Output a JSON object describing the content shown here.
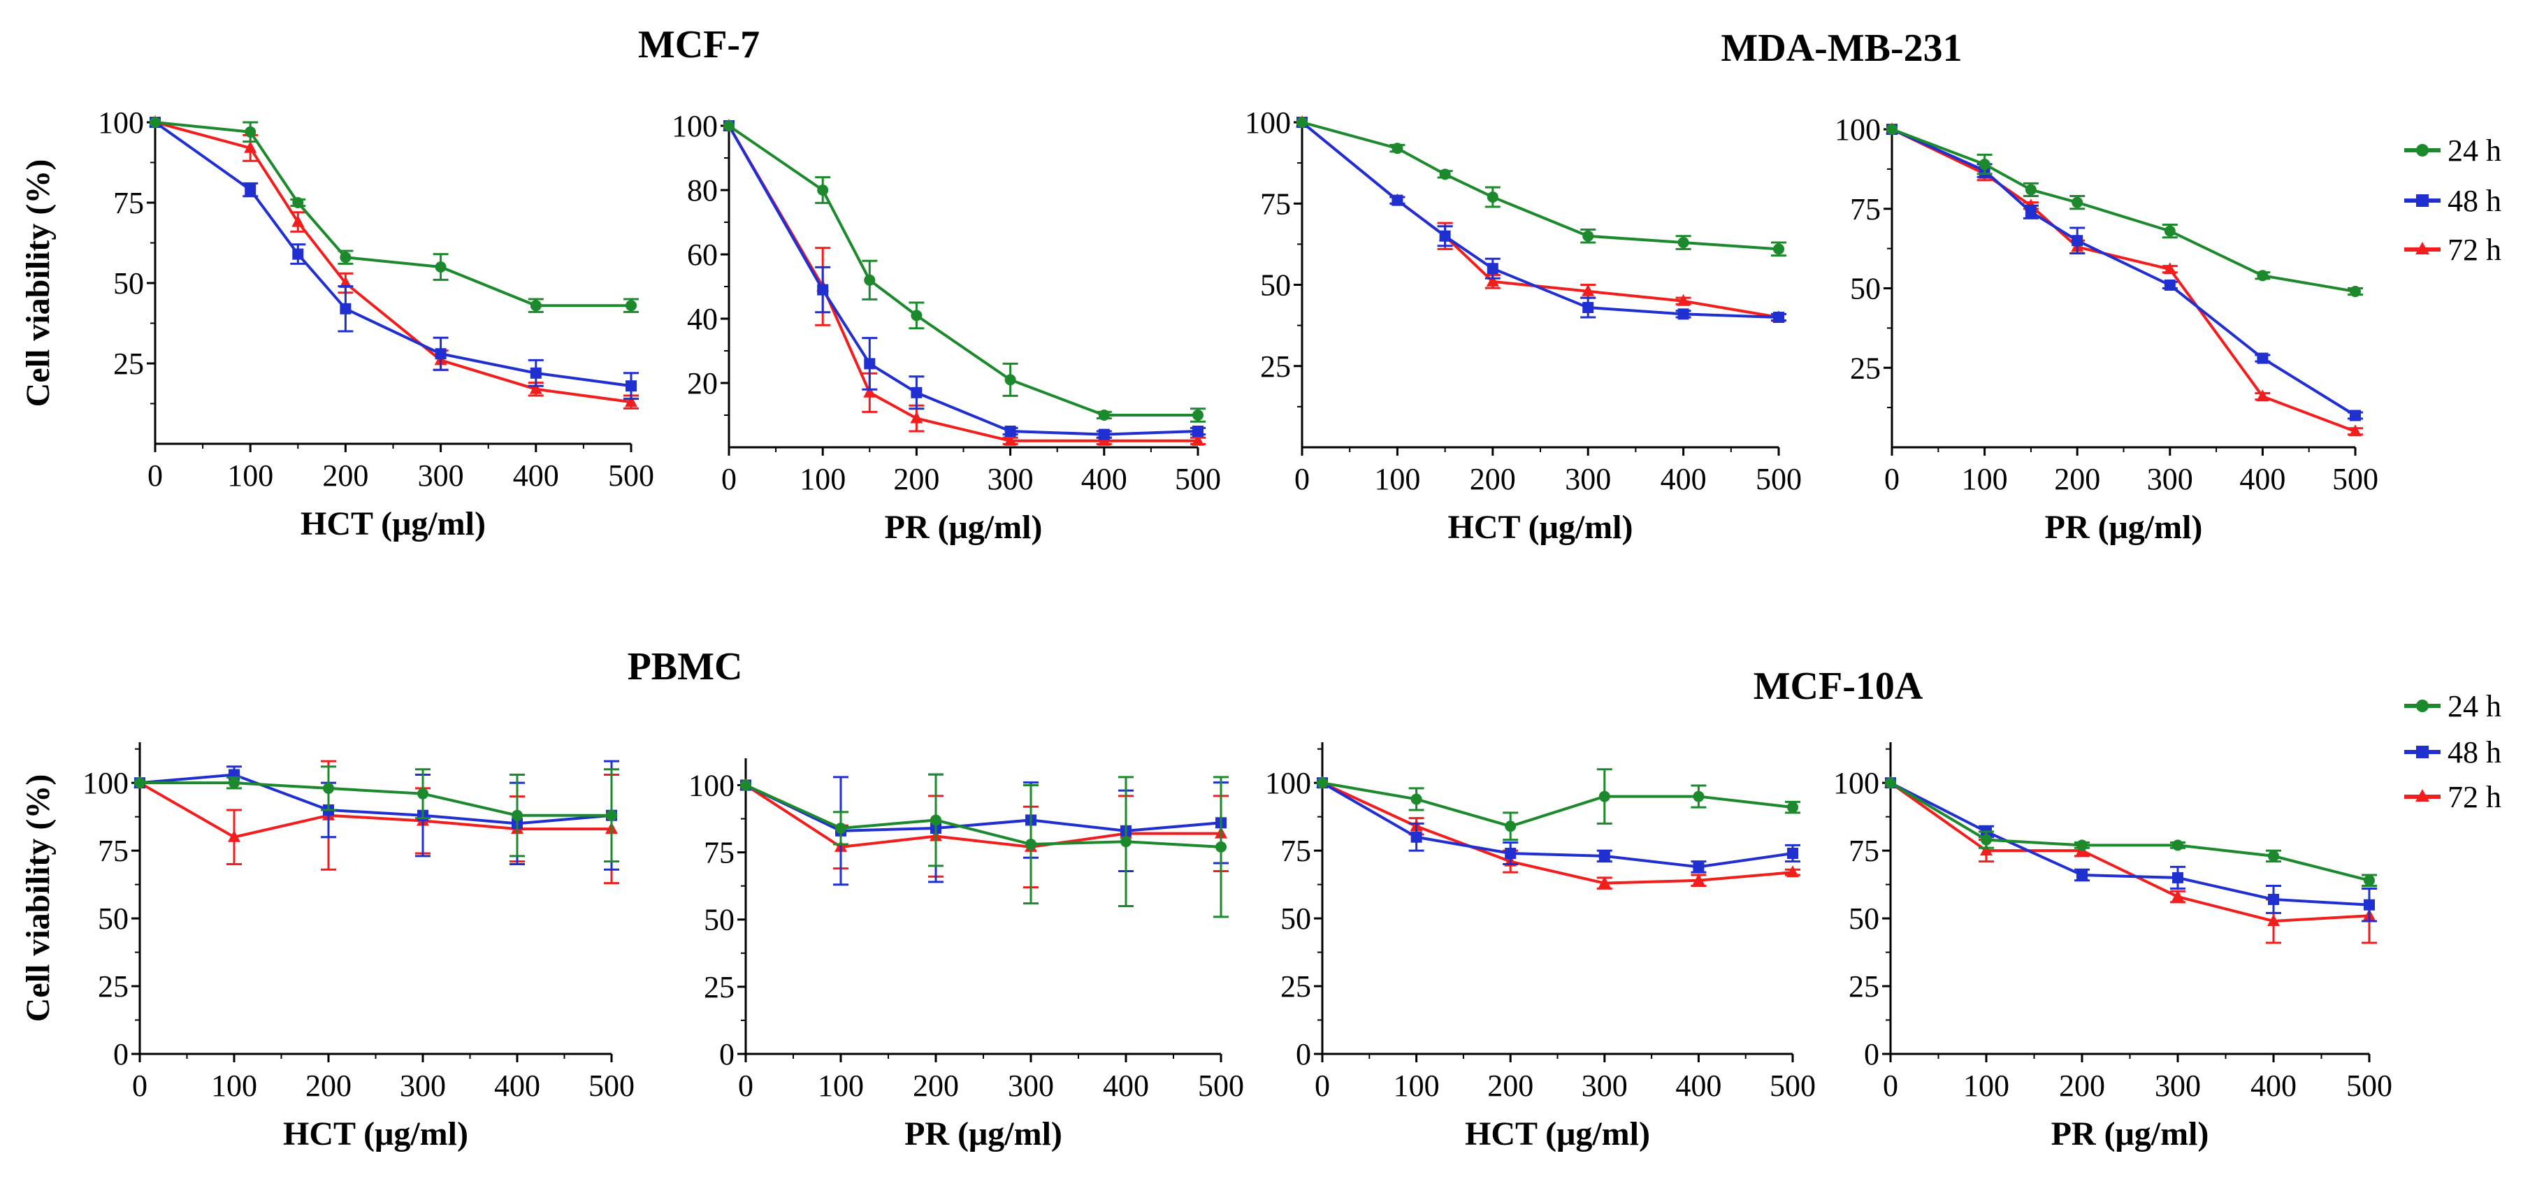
{
  "figure": {
    "group_titles": [
      "MCF-7",
      "MDA-MB-231",
      "PBMC",
      "MCF-10A"
    ],
    "legend_labels": [
      "24 h",
      "48 h",
      "72 h"
    ],
    "series_colors": [
      "#1c8a2c",
      "#1f2fd0",
      "#f21d1d"
    ]
  },
  "chart_data": [
    {
      "type": "line",
      "panel": "MCF-7 HCT",
      "xlabel": "HCT (μg/ml)",
      "ylabel": "Cell viability (%)",
      "x": [
        0,
        100,
        150,
        200,
        300,
        400,
        500
      ],
      "xticks": [
        0,
        100,
        200,
        300,
        400,
        500
      ],
      "ylim": [
        0,
        100
      ],
      "yticks": [
        25,
        50,
        75,
        100
      ],
      "series": [
        {
          "name": "24 h",
          "values": [
            100,
            97,
            75,
            58,
            55,
            43,
            43
          ],
          "errors": [
            0,
            3,
            1,
            2,
            4,
            2,
            2
          ]
        },
        {
          "name": "48 h",
          "values": [
            100,
            79,
            59,
            42,
            28,
            22,
            18
          ],
          "errors": [
            0,
            2,
            3,
            7,
            5,
            4,
            4
          ]
        },
        {
          "name": "72 h",
          "values": [
            100,
            92,
            69,
            50,
            26,
            17,
            13
          ],
          "errors": [
            0,
            4,
            3,
            3,
            3,
            2,
            2
          ]
        }
      ]
    },
    {
      "type": "line",
      "panel": "MCF-7 PR",
      "xlabel": "PR (μg/ml)",
      "ylabel": "",
      "x": [
        0,
        100,
        150,
        200,
        300,
        400,
        500
      ],
      "xticks": [
        0,
        100,
        200,
        300,
        400,
        500
      ],
      "ylim": [
        0,
        100
      ],
      "yticks": [
        20,
        40,
        60,
        80,
        100
      ],
      "series": [
        {
          "name": "24 h",
          "values": [
            100,
            80,
            52,
            41,
            21,
            10,
            10
          ],
          "errors": [
            0,
            4,
            6,
            4,
            5,
            1,
            2
          ]
        },
        {
          "name": "48 h",
          "values": [
            100,
            49,
            26,
            17,
            5,
            4,
            5
          ],
          "errors": [
            0,
            7,
            8,
            5,
            1,
            1,
            1
          ]
        },
        {
          "name": "72 h",
          "values": [
            100,
            50,
            17,
            9,
            2,
            2,
            2
          ],
          "errors": [
            0,
            12,
            6,
            4,
            1,
            1,
            1
          ]
        }
      ]
    },
    {
      "type": "line",
      "panel": "MDA-MB-231 HCT",
      "xlabel": "HCT (μg/ml)",
      "ylabel": "",
      "x": [
        0,
        100,
        150,
        200,
        300,
        400,
        500
      ],
      "xticks": [
        0,
        100,
        200,
        300,
        400,
        500
      ],
      "ylim": [
        0,
        100
      ],
      "yticks": [
        25,
        50,
        75,
        100
      ],
      "series": [
        {
          "name": "24 h",
          "values": [
            100,
            92,
            84,
            77,
            65,
            63,
            61
          ],
          "errors": [
            0,
            1,
            1,
            3,
            2,
            2,
            2
          ]
        },
        {
          "name": "48 h",
          "values": [
            100,
            76,
            65,
            55,
            43,
            41,
            40
          ],
          "errors": [
            0,
            1,
            3,
            3,
            3,
            1,
            1
          ]
        },
        {
          "name": "72 h",
          "values": [
            100,
            76,
            65,
            51,
            48,
            45,
            40
          ],
          "errors": [
            0,
            1,
            4,
            2,
            2,
            1,
            1
          ]
        }
      ]
    },
    {
      "type": "line",
      "panel": "MDA-MB-231 PR",
      "xlabel": "PR (μg/ml)",
      "ylabel": "",
      "x": [
        0,
        100,
        150,
        200,
        300,
        400,
        500
      ],
      "xticks": [
        0,
        100,
        200,
        300,
        400,
        500
      ],
      "ylim": [
        0,
        100
      ],
      "yticks": [
        25,
        50,
        75,
        100
      ],
      "series": [
        {
          "name": "24 h",
          "values": [
            100,
            89,
            81,
            77,
            68,
            54,
            49
          ],
          "errors": [
            0,
            3,
            2,
            2,
            2,
            1,
            1
          ]
        },
        {
          "name": "48 h",
          "values": [
            100,
            87,
            74,
            65,
            51,
            28,
            10
          ],
          "errors": [
            0,
            2,
            2,
            4,
            1,
            1,
            1
          ]
        },
        {
          "name": "72 h",
          "values": [
            100,
            86,
            76,
            63,
            56,
            16,
            5
          ],
          "errors": [
            0,
            2,
            1,
            2,
            1,
            1,
            1
          ]
        }
      ]
    },
    {
      "type": "line",
      "panel": "PBMC HCT",
      "xlabel": "HCT (μg/ml)",
      "ylabel": "Cell viability (%)",
      "x": [
        0,
        100,
        200,
        300,
        400,
        500
      ],
      "xticks": [
        0,
        100,
        200,
        300,
        400,
        500
      ],
      "ylim": [
        0,
        115
      ],
      "yticks": [
        0,
        25,
        50,
        75,
        100
      ],
      "series": [
        {
          "name": "24 h",
          "values": [
            100,
            100,
            98,
            96,
            88,
            88
          ],
          "errors": [
            0,
            2,
            8,
            9,
            15,
            17
          ]
        },
        {
          "name": "48 h",
          "values": [
            100,
            103,
            90,
            88,
            85,
            88
          ],
          "errors": [
            0,
            3,
            10,
            15,
            15,
            20
          ]
        },
        {
          "name": "72 h",
          "values": [
            100,
            80,
            88,
            86,
            83,
            83
          ],
          "errors": [
            0,
            10,
            20,
            12,
            12,
            20
          ]
        }
      ]
    },
    {
      "type": "line",
      "panel": "PBMC PR",
      "xlabel": "PR (μg/ml)",
      "ylabel": "",
      "x": [
        0,
        100,
        200,
        300,
        400,
        500
      ],
      "xticks": [
        0,
        100,
        200,
        300,
        400,
        500
      ],
      "ylim": [
        0,
        110
      ],
      "yticks": [
        0,
        25,
        50,
        75,
        100
      ],
      "series": [
        {
          "name": "24 h",
          "values": [
            100,
            84,
            87,
            78,
            79,
            77
          ],
          "errors": [
            0,
            6,
            17,
            22,
            24,
            26
          ]
        },
        {
          "name": "48 h",
          "values": [
            100,
            83,
            84,
            87,
            83,
            86
          ],
          "errors": [
            0,
            20,
            20,
            14,
            15,
            15
          ]
        },
        {
          "name": "72 h",
          "values": [
            100,
            77,
            81,
            77,
            82,
            82
          ],
          "errors": [
            0,
            8,
            15,
            15,
            14,
            14
          ]
        }
      ]
    },
    {
      "type": "line",
      "panel": "MCF-10A HCT",
      "xlabel": "HCT (μg/ml)",
      "ylabel": "",
      "x": [
        0,
        100,
        200,
        300,
        400,
        500
      ],
      "xticks": [
        0,
        100,
        200,
        300,
        400,
        500
      ],
      "ylim": [
        0,
        115
      ],
      "yticks": [
        0,
        25,
        50,
        75,
        100
      ],
      "series": [
        {
          "name": "24 h",
          "values": [
            100,
            94,
            84,
            95,
            95,
            91
          ],
          "errors": [
            0,
            4,
            5,
            10,
            4,
            2
          ]
        },
        {
          "name": "48 h",
          "values": [
            100,
            80,
            74,
            73,
            69,
            74
          ],
          "errors": [
            0,
            5,
            4,
            2,
            2,
            3
          ]
        },
        {
          "name": "72 h",
          "values": [
            100,
            84,
            71,
            63,
            64,
            67
          ],
          "errors": [
            0,
            3,
            4,
            2,
            2,
            1
          ]
        }
      ]
    },
    {
      "type": "line",
      "panel": "MCF-10A PR",
      "xlabel": "PR (μg/ml)",
      "ylabel": "",
      "x": [
        0,
        100,
        200,
        300,
        400,
        500
      ],
      "xticks": [
        0,
        100,
        200,
        300,
        400,
        500
      ],
      "ylim": [
        0,
        115
      ],
      "yticks": [
        0,
        25,
        50,
        75,
        100
      ],
      "series": [
        {
          "name": "24 h",
          "values": [
            100,
            79,
            77,
            77,
            73,
            64
          ],
          "errors": [
            0,
            3,
            1,
            1,
            2,
            2
          ]
        },
        {
          "name": "48 h",
          "values": [
            100,
            82,
            66,
            65,
            57,
            55
          ],
          "errors": [
            0,
            2,
            2,
            4,
            5,
            6
          ]
        },
        {
          "name": "72 h",
          "values": [
            100,
            75,
            75,
            58,
            49,
            51
          ],
          "errors": [
            0,
            4,
            2,
            2,
            8,
            10
          ]
        }
      ]
    }
  ]
}
